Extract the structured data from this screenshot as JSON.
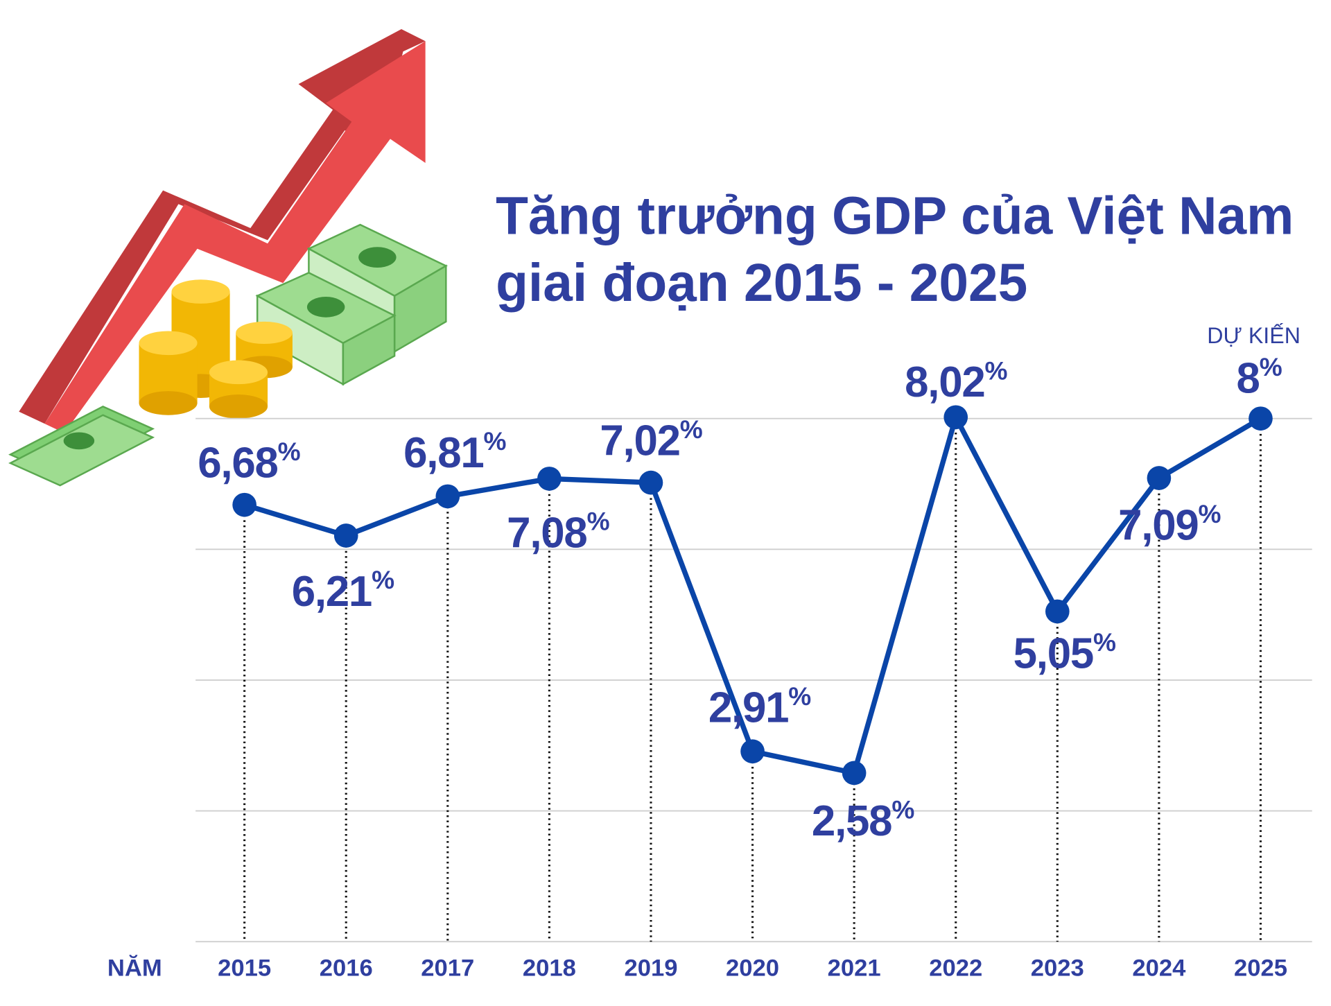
{
  "chart_data": {
    "type": "line",
    "title": [
      "Tăng trưởng GDP của Việt Nam",
      "giai đoạn 2015 - 2025"
    ],
    "x_label": "NĂM",
    "annotation": "DỰ KIẾN",
    "categories": [
      "2015",
      "2016",
      "2017",
      "2018",
      "2019",
      "2020",
      "2021",
      "2022",
      "2023",
      "2024",
      "2025"
    ],
    "values": [
      6.68,
      6.21,
      6.81,
      7.08,
      7.02,
      2.91,
      2.58,
      8.02,
      5.05,
      7.09,
      8
    ],
    "value_labels": [
      "6,68%",
      "6,21%",
      "6,81%",
      "7,08%",
      "7,02%",
      "2,91%",
      "2,58%",
      "8,02%",
      "5,05%",
      "7,09%",
      "8%"
    ],
    "color": "#0a45a8",
    "ylim": [
      0,
      8
    ],
    "yticks": [
      0,
      2,
      4,
      6,
      8
    ],
    "grid": true
  }
}
